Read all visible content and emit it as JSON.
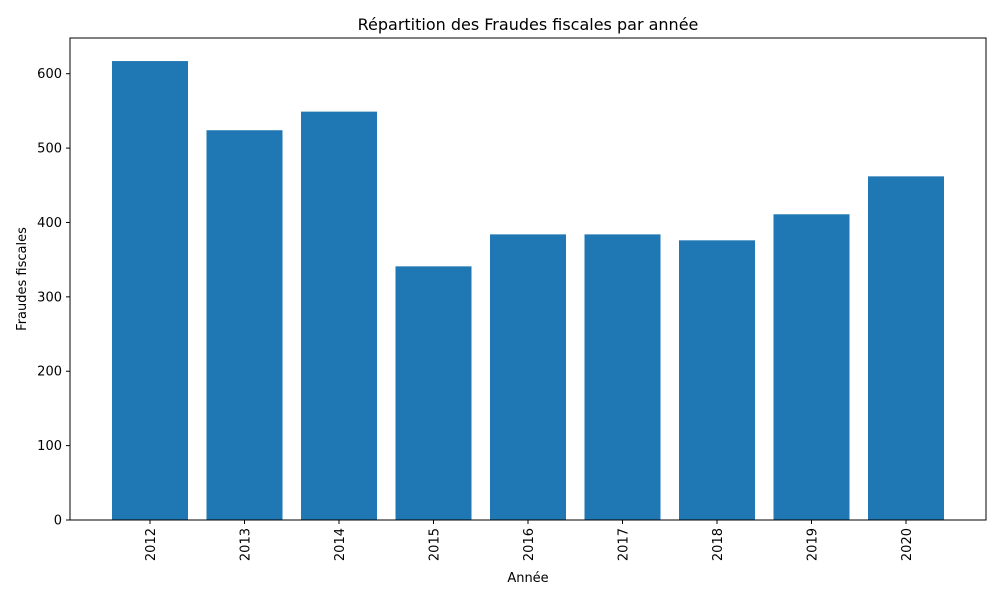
{
  "chart_data": {
    "type": "bar",
    "title": "Répartition des Fraudes fiscales par année",
    "xlabel": "Année",
    "ylabel": "Fraudes fiscales",
    "categories": [
      "2012",
      "2013",
      "2014",
      "2015",
      "2016",
      "2017",
      "2018",
      "2019",
      "2020"
    ],
    "values": [
      617,
      524,
      549,
      341,
      384,
      384,
      376,
      411,
      462
    ],
    "ylim": [
      0,
      648
    ],
    "yticks": [
      0,
      100,
      200,
      300,
      400,
      500,
      600
    ],
    "bar_color": "#1f77b4",
    "grid": false,
    "legend": "none",
    "x_tick_rotation": "vertical"
  }
}
